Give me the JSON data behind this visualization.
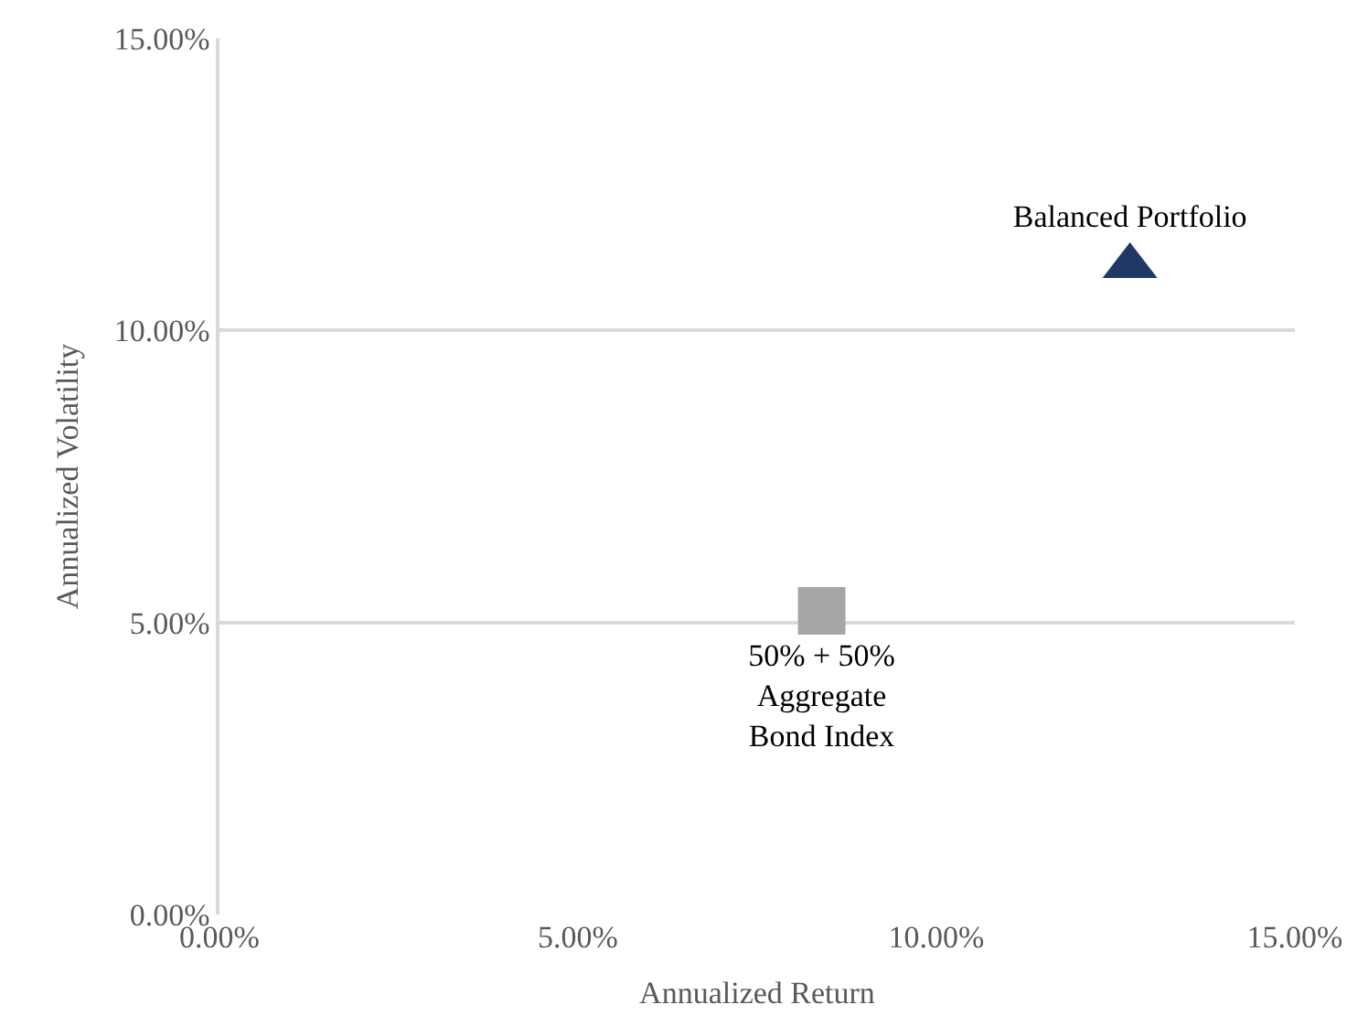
{
  "chart_data": {
    "type": "scatter",
    "xlabel": "Annualized Return",
    "ylabel": "Annualized Volatility",
    "xlim": [
      0,
      15
    ],
    "xticks": [
      {
        "value": 0,
        "label": "0.00%"
      },
      {
        "value": 5,
        "label": "5.00%"
      },
      {
        "value": 10,
        "label": "10.00%"
      },
      {
        "value": 15,
        "label": "15.00%"
      }
    ],
    "ylim": [
      0,
      15
    ],
    "yticks": [
      {
        "value": 0,
        "label": "0.00%"
      },
      {
        "value": 5,
        "label": "5.00%"
      },
      {
        "value": 10,
        "label": "10.00%"
      },
      {
        "value": 15,
        "label": "15.00%"
      }
    ],
    "grid": "y",
    "legend": false,
    "series": [
      {
        "name": "Balanced Portfolio",
        "color": "#1f3864",
        "marker": "triangle",
        "x": [
          12.7
        ],
        "values": [
          11.1
        ]
      },
      {
        "name": "50% + 50%\nAggregate\nBond Index",
        "color": "#a6a6a6",
        "marker": "square",
        "x": [
          8.4
        ],
        "values": [
          5.2
        ]
      }
    ]
  }
}
